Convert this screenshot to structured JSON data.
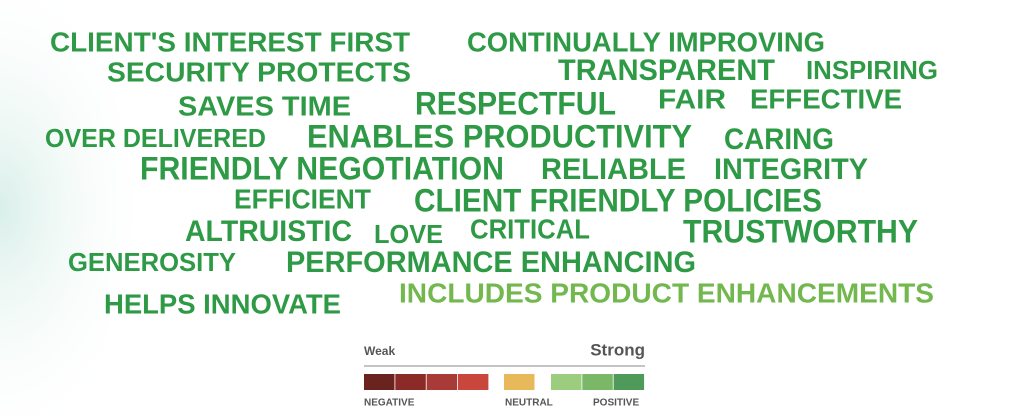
{
  "words": [
    {
      "text": "CLIENT'S INTEREST FIRST",
      "color": "#2e9a46"
    },
    {
      "text": "CONTINUALLY IMPROVING",
      "color": "#2e9a46"
    },
    {
      "text": "SECURITY PROTECTS",
      "color": "#2e9a46"
    },
    {
      "text": "TRANSPARENT",
      "color": "#2e9a46"
    },
    {
      "text": "INSPIRING",
      "color": "#2e9a46"
    },
    {
      "text": "SAVES TIME",
      "color": "#2e9a46"
    },
    {
      "text": "RESPECTFUL",
      "color": "#2e9a46"
    },
    {
      "text": "FAIR",
      "color": "#2e9a46"
    },
    {
      "text": "EFFECTIVE",
      "color": "#2e9a46"
    },
    {
      "text": "OVER DELIVERED",
      "color": "#2e9a46"
    },
    {
      "text": "ENABLES PRODUCTIVITY",
      "color": "#2e9a46"
    },
    {
      "text": "CARING",
      "color": "#2e9a46"
    },
    {
      "text": "FRIENDLY NEGOTIATION",
      "color": "#2e9a46"
    },
    {
      "text": "RELIABLE",
      "color": "#2e9a46"
    },
    {
      "text": "INTEGRITY",
      "color": "#2e9a46"
    },
    {
      "text": "EFFICIENT",
      "color": "#2e9a46"
    },
    {
      "text": "CLIENT FRIENDLY POLICIES",
      "color": "#2e9a46"
    },
    {
      "text": "ALTRUISTIC",
      "color": "#2e9a46"
    },
    {
      "text": "LOVE",
      "color": "#2e9a46"
    },
    {
      "text": "CRITICAL",
      "color": "#2e9a46"
    },
    {
      "text": "TRUSTWORTHY",
      "color": "#2e9a46"
    },
    {
      "text": "GENEROSITY",
      "color": "#2e9a46"
    },
    {
      "text": "PERFORMANCE ENHANCING",
      "color": "#2e9a46"
    },
    {
      "text": "HELPS INNOVATE",
      "color": "#2e9a46"
    },
    {
      "text": "INCLUDES PRODUCT ENHANCEMENTS",
      "color": "#72b84e"
    }
  ],
  "legend": {
    "weak": "Weak",
    "strong": "Strong",
    "negative": {
      "label": "NEGATIVE",
      "colors": [
        "#6b2320",
        "#8b2a26",
        "#a83a38",
        "#c9463d"
      ]
    },
    "neutral": {
      "label": "NEUTRAL",
      "colors": [
        "#e8b95a"
      ]
    },
    "positive": {
      "label": "POSITIVE",
      "colors": [
        "#9ccc7d",
        "#7ab766",
        "#4f9a5b"
      ]
    }
  }
}
